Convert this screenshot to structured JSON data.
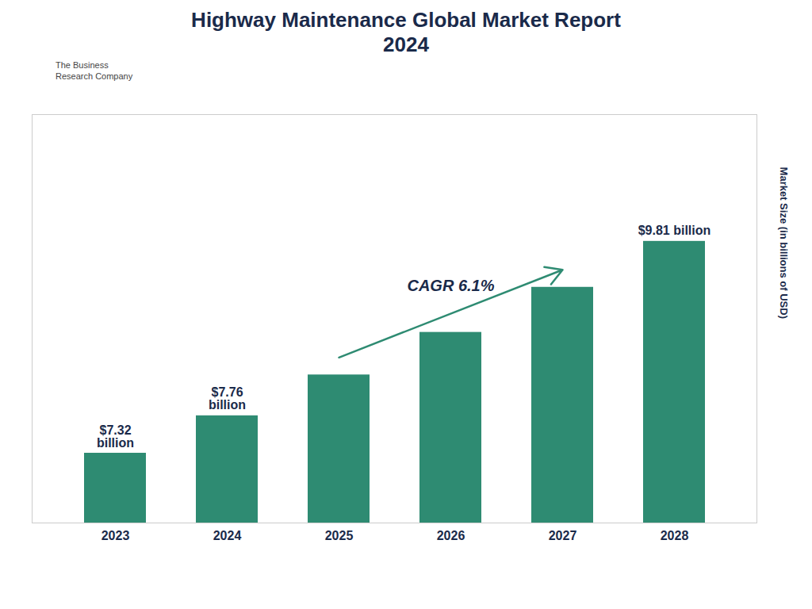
{
  "chart_data": {
    "type": "bar",
    "title": "Highway Maintenance Global Market Report\n2024",
    "categories": [
      "2023",
      "2024",
      "2025",
      "2026",
      "2027",
      "2028"
    ],
    "values": [
      7.32,
      7.76,
      8.24,
      8.74,
      9.27,
      9.81
    ],
    "value_labels": [
      "$7.32\nbillion",
      "$7.76\nbillion",
      null,
      null,
      null,
      "$9.81 billion"
    ],
    "color": "#2E8B72",
    "ylabel": "Market Size (in billions of USD)",
    "ylim": [
      6.5,
      11.2995
    ],
    "yticks": [],
    "tick_labels": "x",
    "grid": false,
    "annotations": [
      "CAGR 6.1%",
      "The Business\nResearch Company"
    ]
  }
}
